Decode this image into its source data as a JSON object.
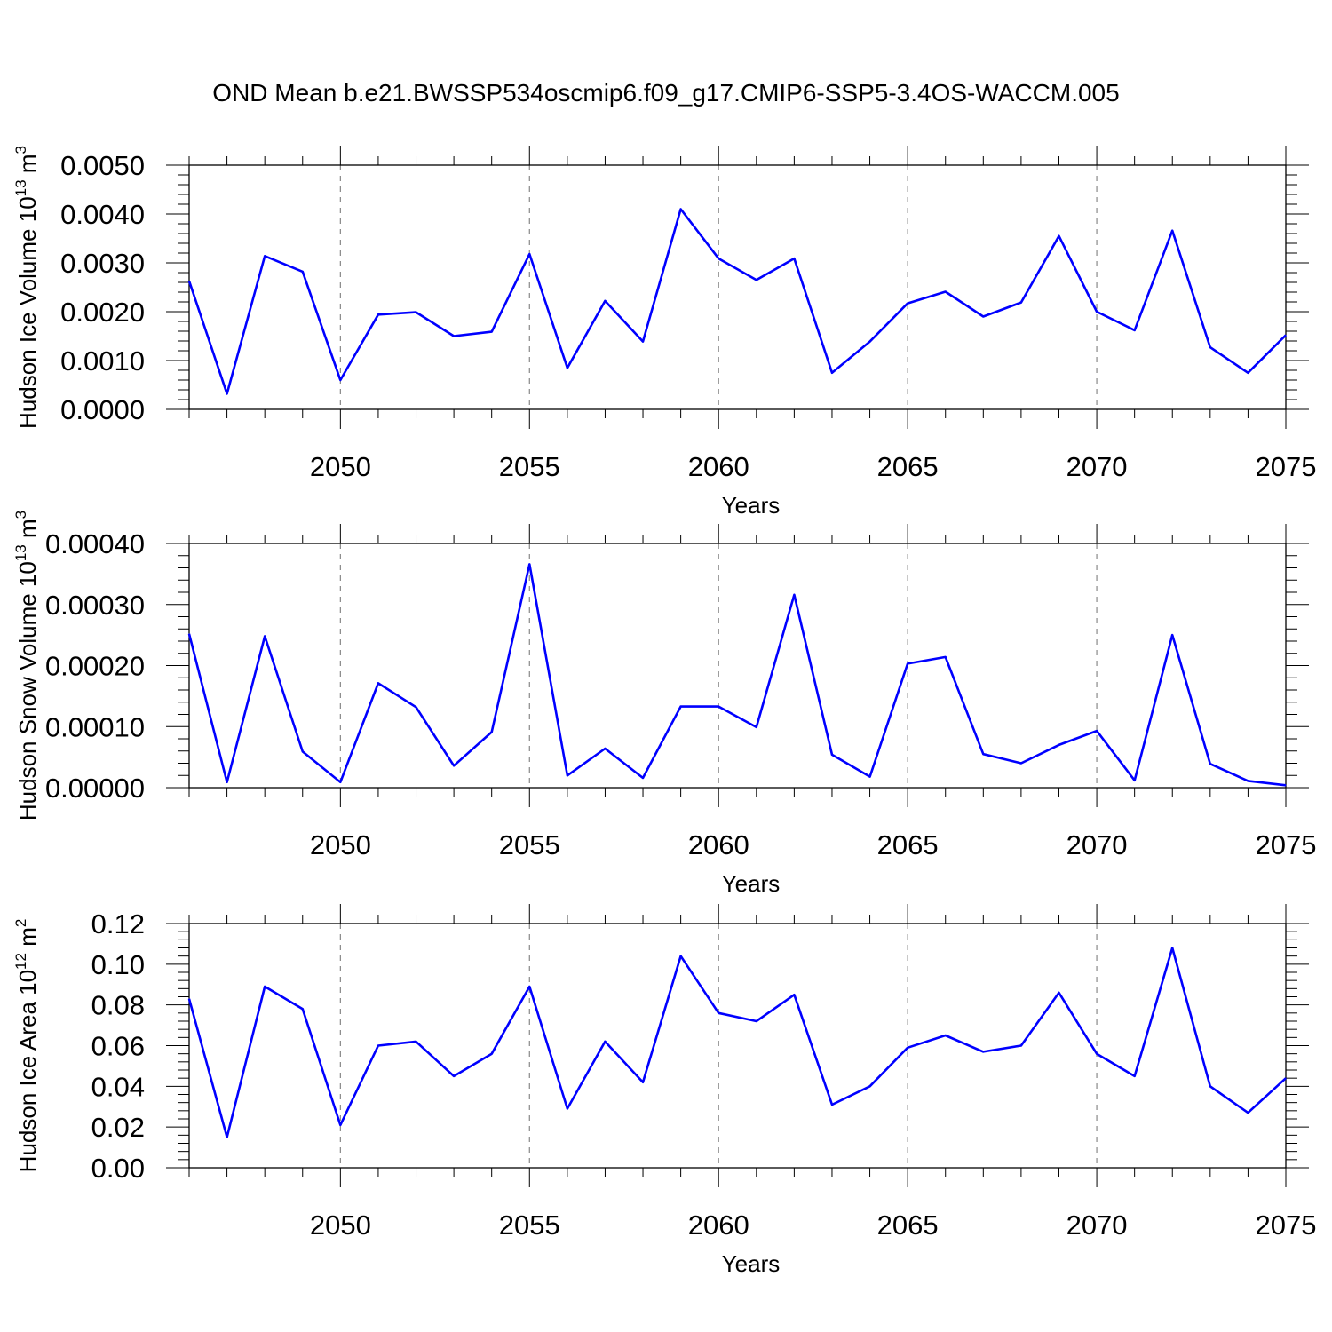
{
  "title": "OND Mean b.e21.BWSSP534oscmip6.f09_g17.CMIP6-SSP5-3.4OS-WACCM.005",
  "colors": {
    "line": "#0000ff",
    "axis": "#000000",
    "grid": "#888888"
  },
  "chart_data": [
    {
      "type": "line",
      "ylabel": {
        "text": "Hudson Ice Volume 10",
        "exp": "13",
        "unit": " m",
        "unit_exp": "3"
      },
      "xlabel": "Years",
      "xlim": [
        2046,
        2075
      ],
      "ylim": [
        0,
        0.005
      ],
      "xticks": [
        "2050",
        "2055",
        "2060",
        "2065",
        "2070",
        "2075"
      ],
      "yticks": [
        "0.0000",
        "0.0010",
        "0.0020",
        "0.0030",
        "0.0040",
        "0.0050"
      ],
      "x": [
        2046,
        2047,
        2048,
        2049,
        2050,
        2051,
        2052,
        2053,
        2054,
        2055,
        2056,
        2057,
        2058,
        2059,
        2060,
        2061,
        2062,
        2063,
        2064,
        2065,
        2066,
        2067,
        2068,
        2069,
        2070,
        2071,
        2072,
        2073,
        2074,
        2075
      ],
      "series": [
        {
          "name": "Hudson Ice Volume",
          "values": [
            0.00263,
            0.00032,
            0.00314,
            0.00282,
            0.0006,
            0.00194,
            0.00199,
            0.0015,
            0.00159,
            0.00318,
            0.00085,
            0.00222,
            0.00139,
            0.0041,
            0.00309,
            0.00265,
            0.00309,
            0.00075,
            0.00139,
            0.00217,
            0.00241,
            0.0019,
            0.00219,
            0.00355,
            0.002,
            0.00162,
            0.00366,
            0.00127,
            0.00075,
            0.00152
          ]
        }
      ]
    },
    {
      "type": "line",
      "ylabel": {
        "text": "Hudson Snow Volume 10",
        "exp": "13",
        "unit": " m",
        "unit_exp": "3"
      },
      "xlabel": "Years",
      "xlim": [
        2046,
        2075
      ],
      "ylim": [
        0,
        0.0004
      ],
      "xticks": [
        "2050",
        "2055",
        "2060",
        "2065",
        "2070",
        "2075"
      ],
      "yticks": [
        "0.00000",
        "0.00010",
        "0.00020",
        "0.00030",
        "0.00040"
      ],
      "x": [
        2046,
        2047,
        2048,
        2049,
        2050,
        2051,
        2052,
        2053,
        2054,
        2055,
        2056,
        2057,
        2058,
        2059,
        2060,
        2061,
        2062,
        2063,
        2064,
        2065,
        2066,
        2067,
        2068,
        2069,
        2070,
        2071,
        2072,
        2073,
        2074,
        2075
      ],
      "series": [
        {
          "name": "Hudson Snow Volume",
          "values": [
            0.000252,
            9e-06,
            0.000248,
            5.9e-05,
            9e-06,
            0.000171,
            0.000132,
            3.6e-05,
            9.1e-05,
            0.000366,
            2e-05,
            6.4e-05,
            1.6e-05,
            0.000133,
            0.000133,
            9.9e-05,
            0.000316,
            5.4e-05,
            1.8e-05,
            0.000203,
            0.000214,
            5.5e-05,
            4e-05,
            7e-05,
            9.3e-05,
            1.2e-05,
            0.00025,
            3.9e-05,
            1.1e-05,
            4e-06
          ]
        }
      ]
    },
    {
      "type": "line",
      "ylabel": {
        "text": "Hudson Ice Area 10",
        "exp": "12",
        "unit": " m",
        "unit_exp": "2"
      },
      "xlabel": "Years",
      "xlim": [
        2046,
        2075
      ],
      "ylim": [
        0,
        0.12
      ],
      "xticks": [
        "2050",
        "2055",
        "2060",
        "2065",
        "2070",
        "2075"
      ],
      "yticks": [
        "0.00",
        "0.02",
        "0.04",
        "0.06",
        "0.08",
        "0.10",
        "0.12"
      ],
      "x": [
        2046,
        2047,
        2048,
        2049,
        2050,
        2051,
        2052,
        2053,
        2054,
        2055,
        2056,
        2057,
        2058,
        2059,
        2060,
        2061,
        2062,
        2063,
        2064,
        2065,
        2066,
        2067,
        2068,
        2069,
        2070,
        2071,
        2072,
        2073,
        2074,
        2075
      ],
      "series": [
        {
          "name": "Hudson Ice Area",
          "values": [
            0.083,
            0.015,
            0.089,
            0.078,
            0.021,
            0.06,
            0.062,
            0.045,
            0.056,
            0.089,
            0.029,
            0.062,
            0.042,
            0.104,
            0.076,
            0.072,
            0.085,
            0.031,
            0.04,
            0.059,
            0.065,
            0.057,
            0.06,
            0.086,
            0.056,
            0.045,
            0.108,
            0.04,
            0.027,
            0.044
          ]
        }
      ]
    }
  ]
}
